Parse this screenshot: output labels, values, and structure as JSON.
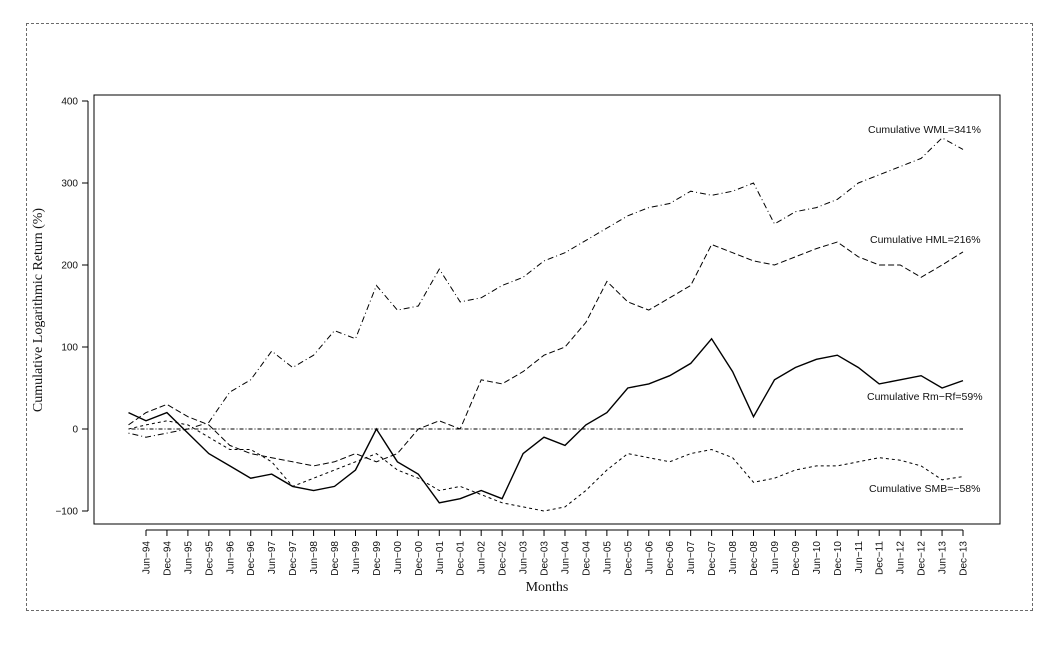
{
  "chart_data": {
    "type": "line",
    "title": "",
    "xlabel": "Months",
    "ylabel": "Cumulative Logarithmic Return (%)",
    "ylim": [
      -100,
      400
    ],
    "yticks": [
      -100,
      0,
      100,
      200,
      300,
      400
    ],
    "x_tick_labels": [
      "Jun-94",
      "Dec-94",
      "Jun-95",
      "Dec-95",
      "Jun-96",
      "Dec-96",
      "Jun-97",
      "Dec-97",
      "Jun-98",
      "Dec-98",
      "Jun-99",
      "Dec-99",
      "Jun-00",
      "Dec-00",
      "Jun-01",
      "Dec-01",
      "Jun-02",
      "Dec-02",
      "Jun-03",
      "Dec-03",
      "Jun-04",
      "Dec-04",
      "Jun-05",
      "Dec-05",
      "Jun-06",
      "Dec-06",
      "Jun-07",
      "Dec-07",
      "Jun-08",
      "Dec-08",
      "Jun-09",
      "Dec-09",
      "Jun-10",
      "Dec-10",
      "Jun-11",
      "Dec-11",
      "Jun-12",
      "Dec-12",
      "Jun-13",
      "Dec-13"
    ],
    "x_start": "Jan-94",
    "x_end": "Dec-13",
    "grid": false,
    "legend": "none",
    "annotations": [
      {
        "text": "Cumulative WML=341%",
        "series": "WML"
      },
      {
        "text": "Cumulative HML=216%",
        "series": "HML"
      },
      {
        "text": "Cumulative Rm−Rf=59%",
        "series": "RmRf"
      },
      {
        "text": "Cumulative SMB=−58%",
        "series": "SMB"
      }
    ],
    "series": [
      {
        "name": "WML",
        "style": "dotdash",
        "points": [
          [
            "Jan-94",
            -5
          ],
          [
            "Jun-94",
            -10
          ],
          [
            "Dec-94",
            -5
          ],
          [
            "Jun-95",
            0
          ],
          [
            "Dec-95",
            8
          ],
          [
            "Jun-96",
            45
          ],
          [
            "Dec-96",
            60
          ],
          [
            "Jun-97",
            95
          ],
          [
            "Dec-97",
            75
          ],
          [
            "Jun-98",
            90
          ],
          [
            "Dec-98",
            120
          ],
          [
            "Jun-99",
            110
          ],
          [
            "Dec-99",
            175
          ],
          [
            "Jun-00",
            145
          ],
          [
            "Dec-00",
            150
          ],
          [
            "Jun-01",
            195
          ],
          [
            "Dec-01",
            155
          ],
          [
            "Jun-02",
            160
          ],
          [
            "Dec-02",
            175
          ],
          [
            "Jun-03",
            185
          ],
          [
            "Dec-03",
            205
          ],
          [
            "Jun-04",
            215
          ],
          [
            "Dec-04",
            230
          ],
          [
            "Jun-05",
            245
          ],
          [
            "Dec-05",
            260
          ],
          [
            "Jun-06",
            270
          ],
          [
            "Dec-06",
            275
          ],
          [
            "Jun-07",
            290
          ],
          [
            "Dec-07",
            285
          ],
          [
            "Jun-08",
            290
          ],
          [
            "Dec-08",
            300
          ],
          [
            "Jun-09",
            250
          ],
          [
            "Dec-09",
            265
          ],
          [
            "Jun-10",
            270
          ],
          [
            "Dec-10",
            280
          ],
          [
            "Jun-11",
            300
          ],
          [
            "Dec-11",
            310
          ],
          [
            "Jun-12",
            320
          ],
          [
            "Dec-12",
            330
          ],
          [
            "Jun-13",
            355
          ],
          [
            "Dec-13",
            341
          ]
        ]
      },
      {
        "name": "HML",
        "style": "dashed",
        "points": [
          [
            "Jan-94",
            5
          ],
          [
            "Jun-94",
            20
          ],
          [
            "Dec-94",
            30
          ],
          [
            "Jun-95",
            15
          ],
          [
            "Dec-95",
            5
          ],
          [
            "Jun-96",
            -20
          ],
          [
            "Dec-96",
            -30
          ],
          [
            "Jun-97",
            -35
          ],
          [
            "Dec-97",
            -40
          ],
          [
            "Jun-98",
            -45
          ],
          [
            "Dec-98",
            -40
          ],
          [
            "Jun-99",
            -30
          ],
          [
            "Dec-99",
            -40
          ],
          [
            "Jun-00",
            -30
          ],
          [
            "Dec-00",
            0
          ],
          [
            "Jun-01",
            10
          ],
          [
            "Dec-01",
            0
          ],
          [
            "Jun-02",
            60
          ],
          [
            "Dec-02",
            55
          ],
          [
            "Jun-03",
            70
          ],
          [
            "Dec-03",
            90
          ],
          [
            "Jun-04",
            100
          ],
          [
            "Dec-04",
            130
          ],
          [
            "Jun-05",
            180
          ],
          [
            "Dec-05",
            155
          ],
          [
            "Jun-06",
            145
          ],
          [
            "Dec-06",
            160
          ],
          [
            "Jun-07",
            175
          ],
          [
            "Dec-07",
            225
          ],
          [
            "Jun-08",
            215
          ],
          [
            "Dec-08",
            205
          ],
          [
            "Jun-09",
            200
          ],
          [
            "Dec-09",
            210
          ],
          [
            "Jun-10",
            220
          ],
          [
            "Dec-10",
            228
          ],
          [
            "Jun-11",
            210
          ],
          [
            "Dec-11",
            200
          ],
          [
            "Jun-12",
            200
          ],
          [
            "Dec-12",
            185
          ],
          [
            "Jun-13",
            200
          ],
          [
            "Dec-13",
            216
          ]
        ]
      },
      {
        "name": "Rm−Rf",
        "style": "solid",
        "points": [
          [
            "Jan-94",
            20
          ],
          [
            "Jun-94",
            10
          ],
          [
            "Dec-94",
            20
          ],
          [
            "Jun-95",
            -5
          ],
          [
            "Dec-95",
            -30
          ],
          [
            "Jun-96",
            -45
          ],
          [
            "Dec-96",
            -60
          ],
          [
            "Jun-97",
            -55
          ],
          [
            "Dec-97",
            -70
          ],
          [
            "Jun-98",
            -75
          ],
          [
            "Dec-98",
            -70
          ],
          [
            "Jun-99",
            -50
          ],
          [
            "Dec-99",
            0
          ],
          [
            "Jun-00",
            -40
          ],
          [
            "Dec-00",
            -55
          ],
          [
            "Jun-01",
            -90
          ],
          [
            "Dec-01",
            -85
          ],
          [
            "Jun-02",
            -75
          ],
          [
            "Dec-02",
            -85
          ],
          [
            "Jun-03",
            -30
          ],
          [
            "Dec-03",
            -10
          ],
          [
            "Jun-04",
            -20
          ],
          [
            "Dec-04",
            5
          ],
          [
            "Jun-05",
            20
          ],
          [
            "Dec-05",
            50
          ],
          [
            "Jun-06",
            55
          ],
          [
            "Dec-06",
            65
          ],
          [
            "Jun-07",
            80
          ],
          [
            "Dec-07",
            110
          ],
          [
            "Jun-08",
            70
          ],
          [
            "Dec-08",
            15
          ],
          [
            "Jun-09",
            60
          ],
          [
            "Dec-09",
            75
          ],
          [
            "Jun-10",
            85
          ],
          [
            "Dec-10",
            90
          ],
          [
            "Jun-11",
            75
          ],
          [
            "Dec-11",
            55
          ],
          [
            "Jun-12",
            60
          ],
          [
            "Dec-12",
            65
          ],
          [
            "Jun-13",
            50
          ],
          [
            "Dec-13",
            59
          ]
        ]
      },
      {
        "name": "SMB",
        "style": "dashed-fine",
        "points": [
          [
            "Jan-94",
            0
          ],
          [
            "Jun-94",
            5
          ],
          [
            "Dec-94",
            10
          ],
          [
            "Jun-95",
            5
          ],
          [
            "Dec-95",
            -10
          ],
          [
            "Jun-96",
            -25
          ],
          [
            "Dec-96",
            -25
          ],
          [
            "Jun-97",
            -40
          ],
          [
            "Dec-97",
            -70
          ],
          [
            "Jun-98",
            -60
          ],
          [
            "Dec-98",
            -50
          ],
          [
            "Jun-99",
            -40
          ],
          [
            "Dec-99",
            -30
          ],
          [
            "Jun-00",
            -50
          ],
          [
            "Dec-00",
            -60
          ],
          [
            "Jun-01",
            -75
          ],
          [
            "Dec-01",
            -70
          ],
          [
            "Jun-02",
            -80
          ],
          [
            "Dec-02",
            -90
          ],
          [
            "Jun-03",
            -95
          ],
          [
            "Dec-03",
            -100
          ],
          [
            "Jun-04",
            -95
          ],
          [
            "Dec-04",
            -75
          ],
          [
            "Jun-05",
            -50
          ],
          [
            "Dec-05",
            -30
          ],
          [
            "Jun-06",
            -35
          ],
          [
            "Dec-06",
            -40
          ],
          [
            "Jun-07",
            -30
          ],
          [
            "Dec-07",
            -25
          ],
          [
            "Jun-08",
            -35
          ],
          [
            "Dec-08",
            -65
          ],
          [
            "Jun-09",
            -60
          ],
          [
            "Dec-09",
            -50
          ],
          [
            "Jun-10",
            -45
          ],
          [
            "Dec-10",
            -45
          ],
          [
            "Jun-11",
            -40
          ],
          [
            "Dec-11",
            -35
          ],
          [
            "Jun-12",
            -38
          ],
          [
            "Dec-12",
            -45
          ],
          [
            "Jun-13",
            -62
          ],
          [
            "Dec-13",
            -58
          ]
        ]
      },
      {
        "name": "",
        "style": "dotdash-fine",
        "points": [
          [
            "Jan-94",
            0
          ],
          [
            "Dec-13",
            0
          ]
        ]
      }
    ]
  }
}
